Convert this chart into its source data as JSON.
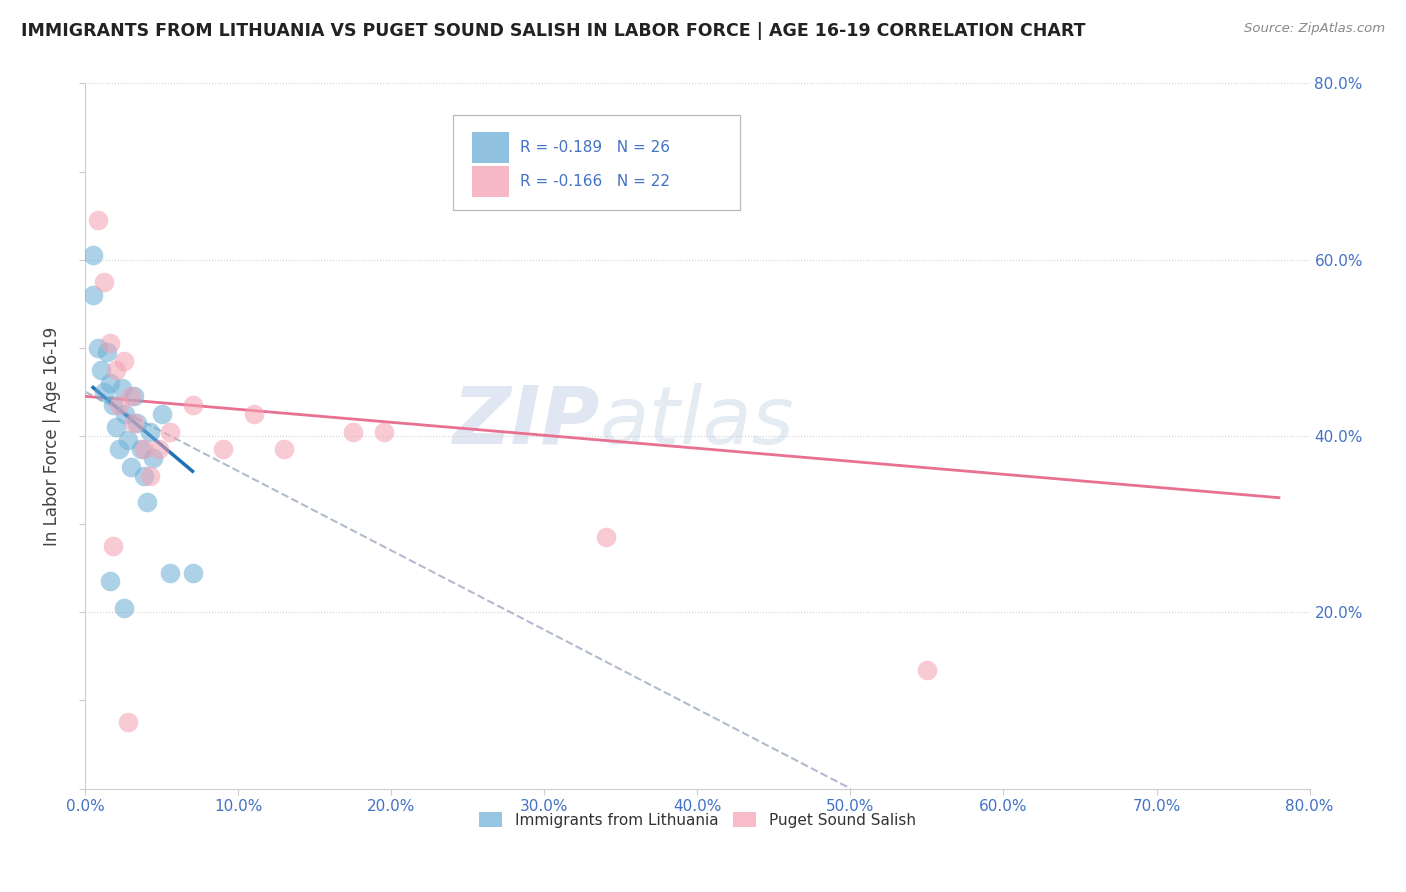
{
  "title": "IMMIGRANTS FROM LITHUANIA VS PUGET SOUND SALISH IN LABOR FORCE | AGE 16-19 CORRELATION CHART",
  "source": "Source: ZipAtlas.com",
  "ylabel": "In Labor Force | Age 16-19",
  "xlim": [
    0.0,
    0.8
  ],
  "ylim": [
    0.0,
    0.8
  ],
  "xticks": [
    0.0,
    0.1,
    0.2,
    0.3,
    0.4,
    0.5,
    0.6,
    0.7,
    0.8
  ],
  "yticks": [
    0.0,
    0.1,
    0.2,
    0.3,
    0.4,
    0.5,
    0.6,
    0.7,
    0.8
  ],
  "right_ytick_labels": [
    "80.0%",
    "60.0%",
    "40.0%",
    "20.0%"
  ],
  "right_ytick_positions": [
    0.8,
    0.6,
    0.4,
    0.2
  ],
  "blue_label": "Immigrants from Lithuania",
  "pink_label": "Puget Sound Salish",
  "blue_r": "-0.189",
  "blue_n": "26",
  "pink_r": "-0.166",
  "pink_n": "22",
  "blue_color": "#6baed6",
  "pink_color": "#f4a0b0",
  "blue_line_color": "#2171b5",
  "pink_line_color": "#e87090",
  "dashed_line_color": "#aab4c8",
  "watermark_zip": "ZIP",
  "watermark_atlas": "atlas",
  "blue_points_x": [
    0.005,
    0.005,
    0.008,
    0.01,
    0.012,
    0.014,
    0.016,
    0.018,
    0.02,
    0.022,
    0.024,
    0.026,
    0.028,
    0.03,
    0.032,
    0.034,
    0.036,
    0.038,
    0.04,
    0.042,
    0.044,
    0.016,
    0.025,
    0.05,
    0.055,
    0.07
  ],
  "blue_points_y": [
    0.605,
    0.56,
    0.5,
    0.475,
    0.45,
    0.495,
    0.46,
    0.435,
    0.41,
    0.385,
    0.455,
    0.425,
    0.395,
    0.365,
    0.445,
    0.415,
    0.385,
    0.355,
    0.325,
    0.405,
    0.375,
    0.235,
    0.205,
    0.425,
    0.245,
    0.245
  ],
  "pink_points_x": [
    0.008,
    0.012,
    0.016,
    0.02,
    0.022,
    0.025,
    0.03,
    0.032,
    0.038,
    0.042,
    0.048,
    0.055,
    0.07,
    0.09,
    0.11,
    0.13,
    0.175,
    0.195,
    0.34,
    0.55,
    0.018,
    0.028
  ],
  "pink_points_y": [
    0.645,
    0.575,
    0.505,
    0.475,
    0.435,
    0.485,
    0.445,
    0.415,
    0.385,
    0.355,
    0.385,
    0.405,
    0.435,
    0.385,
    0.425,
    0.385,
    0.405,
    0.405,
    0.285,
    0.135,
    0.275,
    0.075
  ],
  "blue_line_x": [
    0.005,
    0.07
  ],
  "blue_line_y": [
    0.455,
    0.36
  ],
  "pink_line_x": [
    0.0,
    0.78
  ],
  "pink_line_y": [
    0.445,
    0.33
  ],
  "dash_line_x": [
    0.0,
    0.5
  ],
  "dash_line_y": [
    0.45,
    0.0
  ]
}
